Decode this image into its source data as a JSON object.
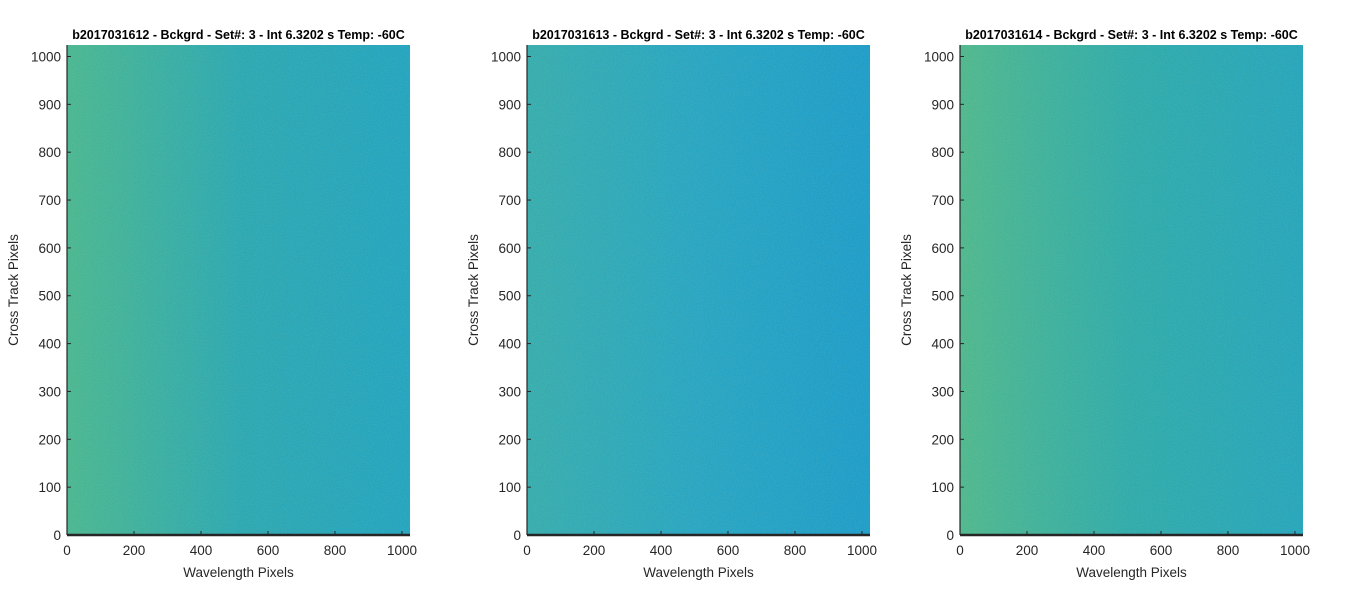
{
  "chart_data": [
    {
      "type": "heatmap",
      "title": "b2017031612 - Bckgrd - Set#: 3 - Int 6.3202 s Temp: -60C",
      "xlabel": "Wavelength Pixels",
      "ylabel": "Cross Track Pixels",
      "xlim": [
        0,
        1024
      ],
      "ylim": [
        0,
        1024
      ],
      "xticks": [
        0,
        200,
        400,
        600,
        800,
        1000
      ],
      "yticks": [
        0,
        100,
        200,
        300,
        400,
        500,
        600,
        700,
        800,
        900,
        1000
      ],
      "grid": false,
      "colormap": "parula",
      "colors": {
        "base": "#1fa3b4",
        "light": "#3fb391",
        "dark": "#159fc3"
      }
    },
    {
      "type": "heatmap",
      "title": "b2017031613 - Bckgrd - Set#: 3 - Int 6.3202 s Temp: -60C",
      "xlabel": "Wavelength Pixels",
      "ylabel": "Cross Track Pixels",
      "xlim": [
        0,
        1024
      ],
      "ylim": [
        0,
        1024
      ],
      "xticks": [
        0,
        200,
        400,
        600,
        800,
        1000
      ],
      "yticks": [
        0,
        100,
        200,
        300,
        400,
        500,
        600,
        700,
        800,
        900,
        1000
      ],
      "grid": false,
      "colormap": "parula",
      "colors": {
        "base": "#1aa0c6",
        "light": "#2aa8b0",
        "dark": "#0f97cd"
      }
    },
    {
      "type": "heatmap",
      "title": "b2017031614 - Bckgrd - Set#: 3 - Int 6.3202 s Temp: -60C",
      "xlabel": "Wavelength Pixels",
      "ylabel": "Cross Track Pixels",
      "xlim": [
        0,
        1024
      ],
      "ylim": [
        0,
        1024
      ],
      "xticks": [
        0,
        200,
        400,
        600,
        800,
        1000
      ],
      "yticks": [
        0,
        100,
        200,
        300,
        400,
        500,
        600,
        700,
        800,
        900,
        1000
      ],
      "grid": false,
      "colormap": "parula",
      "colors": {
        "base": "#22a6ad",
        "light": "#44b48e",
        "dark": "#18a0bf"
      }
    }
  ]
}
